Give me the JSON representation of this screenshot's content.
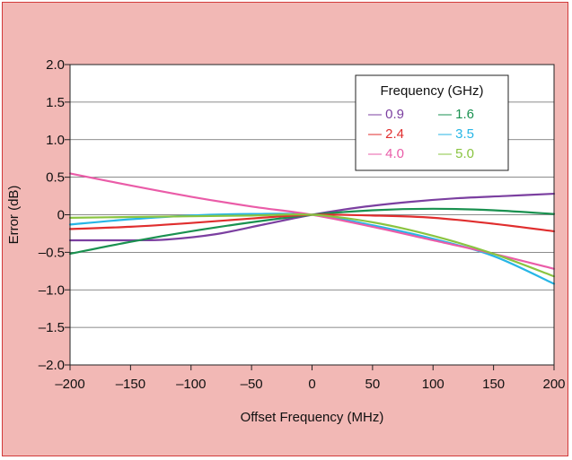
{
  "chart_data": {
    "type": "line",
    "xlabel": "Offset Frequency (MHz)",
    "ylabel": "Error (dB)",
    "xlim": [
      -200,
      200
    ],
    "ylim": [
      -2.0,
      2.0
    ],
    "x_ticks": [
      -200,
      -150,
      -100,
      -50,
      0,
      50,
      100,
      150,
      200
    ],
    "x_tick_labels": [
      "–200",
      "–150",
      "–100",
      "–50",
      "0",
      "50",
      "100",
      "150",
      "200"
    ],
    "y_ticks": [
      2.0,
      1.5,
      1.0,
      0.5,
      0,
      -0.5,
      -1.0,
      -1.5,
      -2.0
    ],
    "y_tick_labels": [
      "2.0",
      "1.5",
      "1.0",
      "0.5",
      "0",
      "–0.5",
      "–1.0",
      "–1.5",
      "–2.0"
    ],
    "grid": "horizontal",
    "legend": {
      "title": "Frequency (GHz)",
      "placement": "top-right",
      "columns": 2,
      "marker": "—"
    },
    "series": [
      {
        "name": "0.9",
        "color": "#7b3fa0",
        "x": [
          -200,
          -150,
          -120,
          -80,
          -40,
          0,
          40,
          80,
          120,
          160,
          200
        ],
        "y": [
          -0.34,
          -0.34,
          -0.33,
          -0.26,
          -0.13,
          0.0,
          0.1,
          0.17,
          0.22,
          0.25,
          0.28
        ]
      },
      {
        "name": "1.6",
        "color": "#1a9150",
        "x": [
          -200,
          -150,
          -100,
          -50,
          0,
          50,
          100,
          150,
          200
        ],
        "y": [
          -0.52,
          -0.36,
          -0.22,
          -0.1,
          0.0,
          0.06,
          0.08,
          0.06,
          0.01
        ]
      },
      {
        "name": "2.4",
        "color": "#e02e2e",
        "x": [
          -200,
          -150,
          -100,
          -50,
          0,
          50,
          100,
          150,
          200
        ],
        "y": [
          -0.19,
          -0.16,
          -0.11,
          -0.05,
          0.0,
          -0.01,
          -0.04,
          -0.12,
          -0.22
        ]
      },
      {
        "name": "3.5",
        "color": "#27b6e6",
        "x": [
          -200,
          -150,
          -100,
          -50,
          0,
          50,
          100,
          150,
          200
        ],
        "y": [
          -0.13,
          -0.06,
          -0.01,
          0.01,
          0.0,
          -0.14,
          -0.32,
          -0.55,
          -0.92
        ]
      },
      {
        "name": "4.0",
        "color": "#ea5ca8",
        "x": [
          -200,
          -150,
          -100,
          -50,
          0,
          50,
          100,
          150,
          200
        ],
        "y": [
          0.55,
          0.39,
          0.24,
          0.11,
          0.0,
          -0.16,
          -0.34,
          -0.52,
          -0.72
        ]
      },
      {
        "name": "5.0",
        "color": "#8ac441",
        "x": [
          -200,
          -150,
          -100,
          -50,
          0,
          50,
          100,
          150,
          200
        ],
        "y": [
          -0.04,
          -0.03,
          -0.02,
          -0.01,
          0.0,
          -0.1,
          -0.28,
          -0.52,
          -0.82
        ]
      }
    ]
  }
}
